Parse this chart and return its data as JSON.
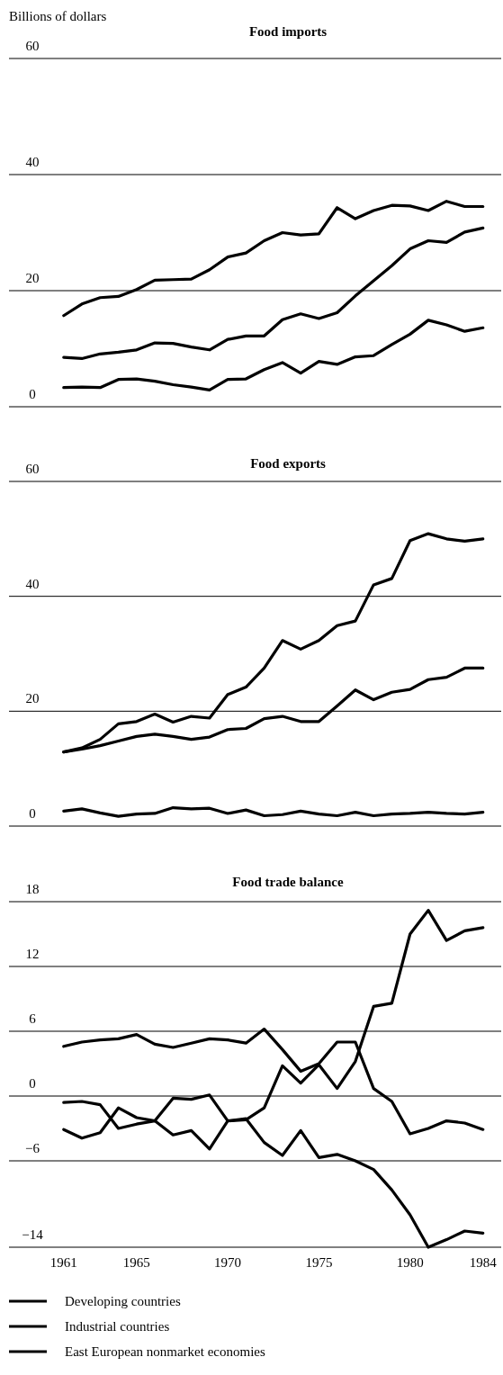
{
  "chart_data": [
    {
      "type": "line",
      "title": "Food imports",
      "ylabel": "Billions of dollars",
      "x": [
        1961,
        1962,
        1963,
        1964,
        1965,
        1966,
        1967,
        1968,
        1969,
        1970,
        1971,
        1972,
        1973,
        1974,
        1975,
        1976,
        1977,
        1978,
        1979,
        1980,
        1981,
        1982,
        1983,
        1984
      ],
      "xlim": [
        1958,
        1985
      ],
      "ylim": [
        0,
        60
      ],
      "yticks": [
        0,
        20,
        40,
        60
      ],
      "grid": "y",
      "tick_labels": "y",
      "line_style": "solid",
      "series": [
        {
          "color": "#000000",
          "values": [
            8.5,
            8.3,
            9.1,
            9.4,
            9.8,
            11,
            10.9,
            10.3,
            9.8,
            11.6,
            12.2,
            12.2,
            15,
            16,
            15.2,
            16.2,
            19.1,
            21.7,
            24.3,
            27.2,
            28.6,
            28.3,
            30.1,
            30.8
          ]
        },
        {
          "color": "#000000",
          "values": [
            15.7,
            17.7,
            18.8,
            19,
            20.2,
            21.8,
            21.9,
            22,
            23.6,
            25.8,
            26.5,
            28.6,
            30,
            29.6,
            29.8,
            34.3,
            32.4,
            33.8,
            34.7,
            34.6,
            33.8,
            35.4,
            34.5,
            34.5
          ]
        },
        {
          "color": "#000000",
          "values": [
            3.3,
            3.4,
            3.3,
            4.7,
            4.8,
            4.4,
            3.8,
            3.4,
            2.9,
            4.7,
            4.8,
            6.4,
            7.6,
            5.8,
            7.8,
            7.3,
            8.6,
            8.8,
            10.7,
            12.5,
            14.9,
            14.1,
            13,
            13.6
          ]
        }
      ]
    },
    {
      "type": "line",
      "title": "Food exports",
      "x": [
        1961,
        1962,
        1963,
        1964,
        1965,
        1966,
        1967,
        1968,
        1969,
        1970,
        1971,
        1972,
        1973,
        1974,
        1975,
        1976,
        1977,
        1978,
        1979,
        1980,
        1981,
        1982,
        1983,
        1984
      ],
      "xlim": [
        1958,
        1985
      ],
      "ylim": [
        0,
        60
      ],
      "yticks": [
        0,
        20,
        40,
        60
      ],
      "grid": "y",
      "tick_labels": "y",
      "line_style": "solid",
      "series": [
        {
          "color": "#000000",
          "values": [
            12.9,
            13.4,
            14,
            14.8,
            15.6,
            16,
            15.6,
            15.1,
            15.5,
            16.8,
            17,
            18.7,
            19.1,
            18.2,
            18.2,
            20.9,
            23.7,
            22,
            23.3,
            23.8,
            25.5,
            25.9,
            27.5,
            27.5
          ]
        },
        {
          "color": "#000000",
          "values": [
            12.9,
            13.6,
            15.1,
            17.8,
            18.2,
            19.5,
            18.1,
            19.1,
            18.8,
            22.9,
            24.2,
            27.5,
            32.3,
            30.8,
            32.3,
            34.9,
            35.7,
            42,
            43.1,
            49.7,
            50.9,
            50,
            49.6,
            50
          ]
        },
        {
          "color": "#000000",
          "values": [
            2.6,
            3,
            2.3,
            1.7,
            2.1,
            2.2,
            3.2,
            3,
            3.1,
            2.2,
            2.8,
            1.8,
            2,
            2.6,
            2.1,
            1.8,
            2.4,
            1.8,
            2.1,
            2.2,
            2.4,
            2.2,
            2.1,
            2.4
          ]
        }
      ]
    },
    {
      "type": "line",
      "title": "Food trade balance",
      "x": [
        1961,
        1962,
        1963,
        1964,
        1965,
        1966,
        1967,
        1968,
        1969,
        1970,
        1971,
        1972,
        1973,
        1974,
        1975,
        1976,
        1977,
        1978,
        1979,
        1980,
        1981,
        1982,
        1983,
        1984
      ],
      "xlim": [
        1958,
        1985
      ],
      "xticks": [
        1961,
        1965,
        1970,
        1975,
        1980,
        1984
      ],
      "ylim": [
        -14,
        18
      ],
      "yticks": [
        {
          "value": -14,
          "label": "−14"
        },
        {
          "value": -6,
          "label": "−6"
        },
        0,
        6,
        12,
        18
      ],
      "grid": "y",
      "legend": "bottom",
      "line_style": "solid",
      "series": [
        {
          "name": "Developing countries",
          "color": "#000000",
          "values": [
            4.6,
            5,
            5.2,
            5.3,
            5.7,
            4.8,
            4.5,
            4.9,
            5.3,
            5.2,
            4.9,
            6.2,
            4.3,
            2.3,
            3,
            5,
            5,
            0.7,
            -0.5,
            -3.5,
            -3,
            -2.3,
            -2.5,
            -3.1
          ]
        },
        {
          "name": "Industrial countries",
          "color": "#000000",
          "values": [
            -3.1,
            -3.9,
            -3.4,
            -1.1,
            -2,
            -2.3,
            -3.6,
            -3.2,
            -4.9,
            -2.3,
            -2.2,
            -1.1,
            2.8,
            1.2,
            2.9,
            0.7,
            3.2,
            8.3,
            8.6,
            15,
            17.2,
            14.4,
            15.3,
            15.6
          ]
        },
        {
          "name": "East European nonmarket economies",
          "color": "#000000",
          "values": [
            -0.6,
            -0.5,
            -0.8,
            -3,
            -2.6,
            -2.3,
            -0.2,
            -0.3,
            0.1,
            -2.3,
            -2.1,
            -4.3,
            -5.5,
            -3.2,
            -5.7,
            -5.4,
            -6,
            -6.8,
            -8.7,
            -11,
            -14,
            -13.3,
            -12.5,
            -12.7
          ]
        }
      ]
    }
  ]
}
